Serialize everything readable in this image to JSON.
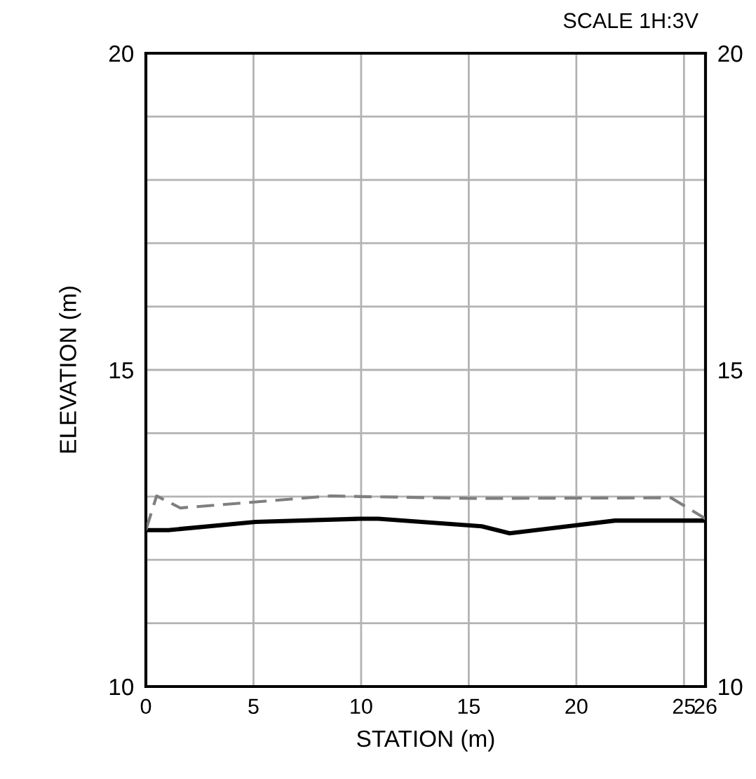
{
  "chart_data": {
    "type": "line",
    "xlabel": "STATION (m)",
    "ylabel": "ELEVATION (m)",
    "annotations": [
      "SCALE 1H:3V"
    ],
    "series": [
      {
        "color": "#000000",
        "line_style": "solid",
        "x": [
          0,
          1.05,
          5.1,
          10,
          10.8,
          15.6,
          16.9,
          21.8,
          26
        ],
        "values": [
          12.47,
          12.47,
          12.6,
          12.65,
          12.65,
          12.53,
          12.42,
          12.62,
          12.62
        ]
      },
      {
        "color": "#7f7f7f",
        "line_style": "dashed",
        "x": [
          0,
          0.5,
          1.6,
          8.6,
          10,
          15.2,
          24.4,
          26
        ],
        "values": [
          12.47,
          13.01,
          12.82,
          13.01,
          13.0,
          12.97,
          12.98,
          12.65
        ]
      }
    ],
    "xlim": [
      0,
      26
    ],
    "xticks": [
      0,
      5,
      10,
      15,
      20,
      25,
      26
    ],
    "ylim": [
      10,
      20
    ],
    "yticks": [
      10,
      {
        "value": 11,
        "label": null
      },
      {
        "value": 12,
        "label": null
      },
      {
        "value": 13,
        "label": null
      },
      {
        "value": 14,
        "label": null
      },
      15,
      {
        "value": 16,
        "label": null
      },
      {
        "value": 17,
        "label": null
      },
      {
        "value": 18,
        "label": null
      },
      {
        "value": 19,
        "label": null
      },
      20
    ],
    "y2lim": [
      10,
      20
    ],
    "y2ticks": [
      10,
      15,
      20
    ],
    "grid": true,
    "marker": "none"
  }
}
